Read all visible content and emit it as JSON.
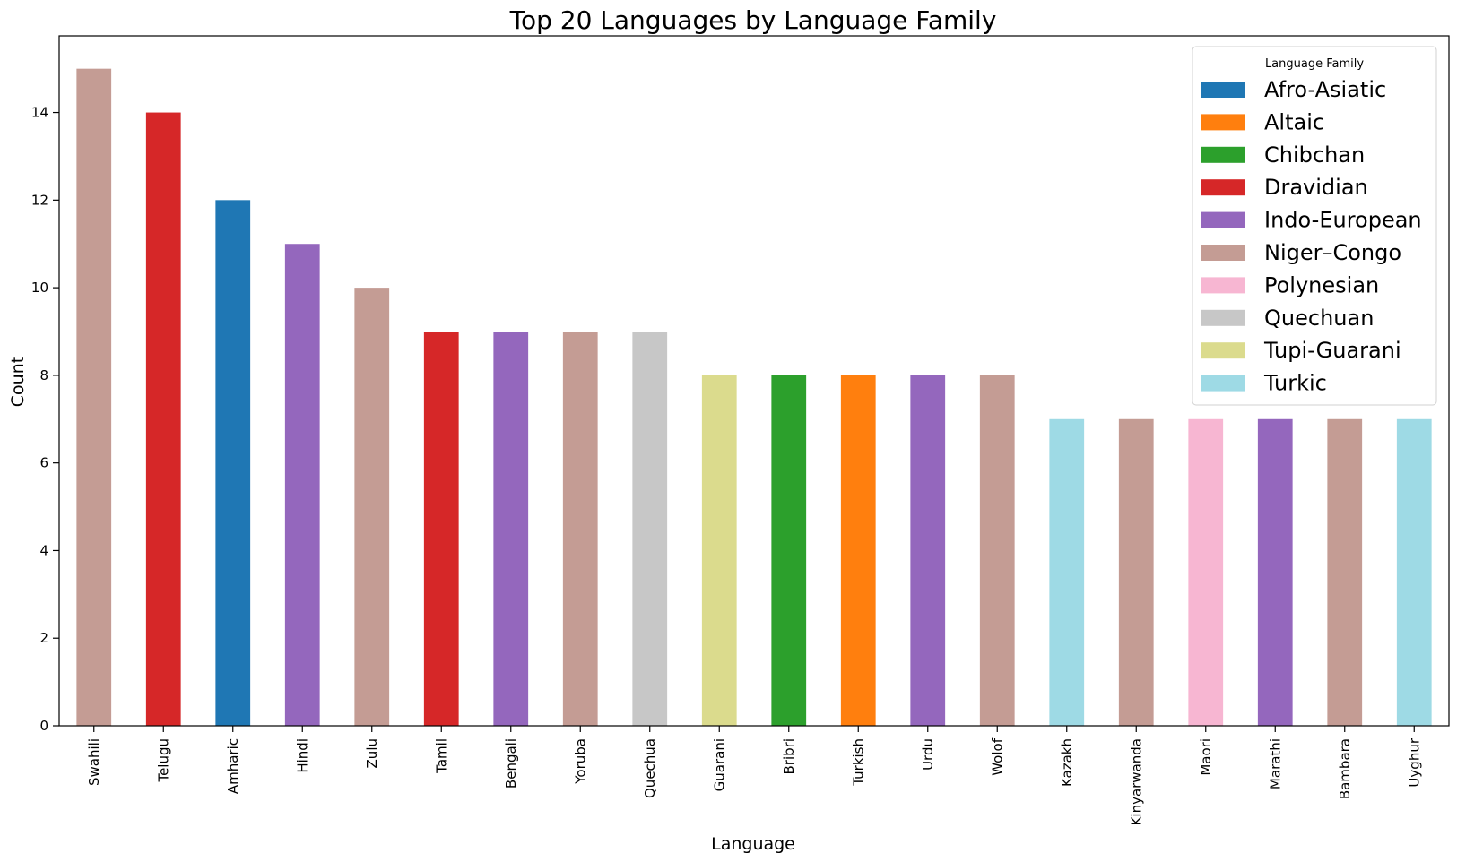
{
  "chart_data": {
    "type": "bar",
    "title": "Top 20 Languages by Language Family",
    "xlabel": "Language",
    "ylabel": "Count",
    "ylim": [
      0,
      15.75
    ],
    "yticks": [
      0,
      2,
      4,
      6,
      8,
      10,
      12,
      14
    ],
    "categories": [
      "Swahili",
      "Telugu",
      "Amharic",
      "Hindi",
      "Zulu",
      "Tamil",
      "Bengali",
      "Yoruba",
      "Quechua",
      "Guarani",
      "Bribri",
      "Turkish",
      "Urdu",
      "Wolof",
      "Kazakh",
      "Kinyarwanda",
      "Maori",
      "Marathi",
      "Bambara",
      "Uyghur"
    ],
    "values": [
      15,
      14,
      12,
      11,
      10,
      9,
      9,
      9,
      9,
      8,
      8,
      8,
      8,
      8,
      7,
      7,
      7,
      7,
      7,
      7
    ],
    "families": [
      "Niger–Congo",
      "Dravidian",
      "Afro-Asiatic",
      "Indo-European",
      "Niger–Congo",
      "Dravidian",
      "Indo-European",
      "Niger–Congo",
      "Quechuan",
      "Tupi-Guarani",
      "Chibchan",
      "Altaic",
      "Indo-European",
      "Niger–Congo",
      "Turkic",
      "Niger–Congo",
      "Polynesian",
      "Indo-European",
      "Niger–Congo",
      "Turkic"
    ],
    "legend": {
      "title": "Language Family",
      "position": "top-right",
      "entries": [
        {
          "name": "Afro-Asiatic",
          "color": "#1f77b4"
        },
        {
          "name": "Altaic",
          "color": "#ff7f0e"
        },
        {
          "name": "Chibchan",
          "color": "#2ca02c"
        },
        {
          "name": "Dravidian",
          "color": "#d62728"
        },
        {
          "name": "Indo-European",
          "color": "#9467bd"
        },
        {
          "name": "Niger–Congo",
          "color": "#c49c94"
        },
        {
          "name": "Polynesian",
          "color": "#f7b6d2"
        },
        {
          "name": "Quechuan",
          "color": "#c7c7c7"
        },
        {
          "name": "Tupi-Guarani",
          "color": "#dbdb8d"
        },
        {
          "name": "Turkic",
          "color": "#9edae5"
        }
      ]
    },
    "grid": false
  }
}
